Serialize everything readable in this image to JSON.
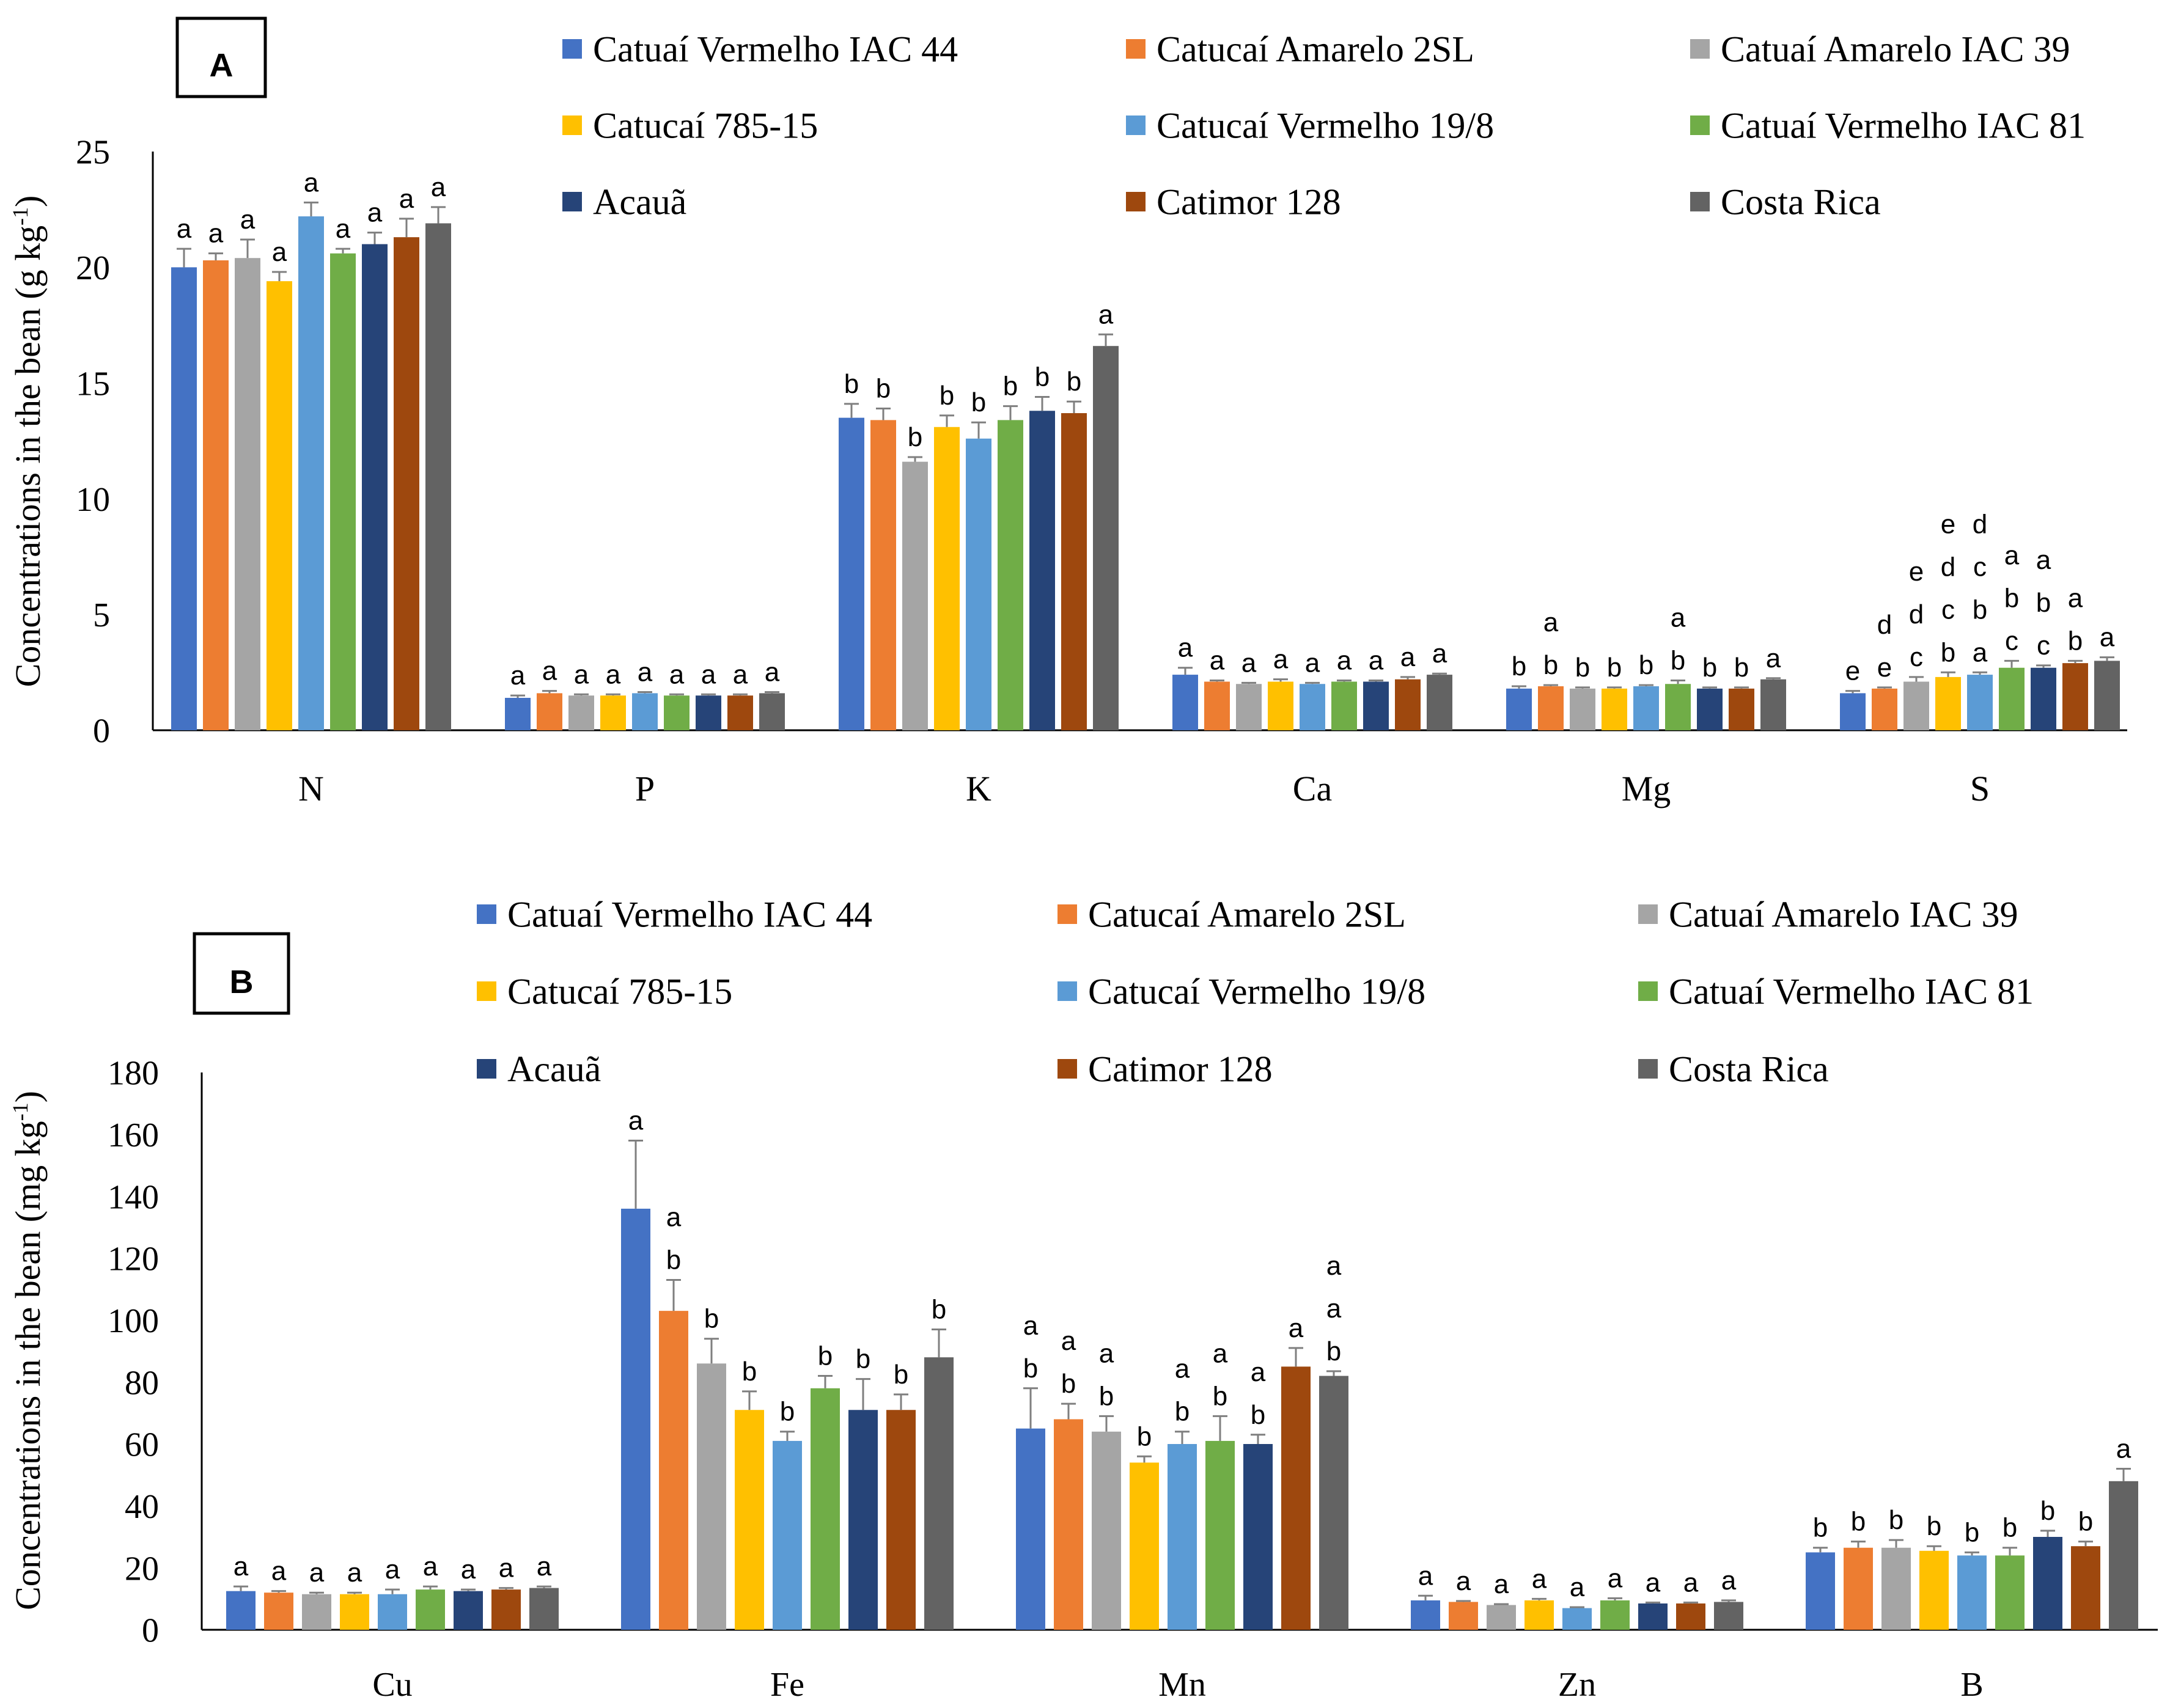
{
  "chart_data": [
    {
      "type": "bar",
      "panel_label": "A",
      "ylabel": "Concentrations in the bean (g kg-1)",
      "ylabel_parts": {
        "main": "Concentrations in the bean (g kg",
        "sup": "-1",
        "close": ")"
      },
      "ylim": [
        0,
        25
      ],
      "yticks": [
        0,
        5,
        10,
        15,
        20,
        25
      ],
      "categories": [
        "N",
        "P",
        "K",
        "Ca",
        "Mg",
        "S"
      ],
      "series": [
        {
          "name": "Catuaí Vermelho IAC 44",
          "color": "#4472C4",
          "values": [
            20.0,
            1.4,
            13.5,
            2.4,
            1.8,
            1.6
          ],
          "errors": [
            0.8,
            0.1,
            0.6,
            0.3,
            0.1,
            0.1
          ],
          "letters": [
            "a",
            "a",
            "b",
            "a",
            "b",
            "e"
          ]
        },
        {
          "name": "Catucaí Amarelo 2SL",
          "color": "#ED7D31",
          "values": [
            20.3,
            1.6,
            13.4,
            2.1,
            1.9,
            1.8
          ],
          "errors": [
            0.3,
            0.1,
            0.5,
            0.05,
            0.05,
            0.05
          ],
          "letters": [
            "a",
            "a",
            "b",
            "a",
            "b\na",
            "e\nd"
          ]
        },
        {
          "name": "Catuaí Amarelo IAC 39",
          "color": "#A5A5A5",
          "values": [
            20.4,
            1.5,
            11.6,
            2.0,
            1.8,
            2.1
          ],
          "errors": [
            0.8,
            0.05,
            0.2,
            0.05,
            0.05,
            0.2
          ],
          "letters": [
            "a",
            "a",
            "b",
            "a",
            "b",
            "c\nd\ne"
          ]
        },
        {
          "name": "Catucaí 785-15",
          "color": "#FFC000",
          "values": [
            19.4,
            1.5,
            13.1,
            2.1,
            1.8,
            2.3
          ],
          "errors": [
            0.4,
            0.05,
            0.5,
            0.1,
            0.05,
            0.2
          ],
          "letters": [
            "a",
            "a",
            "b",
            "a",
            "b",
            "b\nc\nd\ne"
          ]
        },
        {
          "name": "Catucaí Vermelho 19/8",
          "color": "#5B9BD5",
          "values": [
            22.2,
            1.6,
            12.6,
            2.0,
            1.9,
            2.4
          ],
          "errors": [
            0.6,
            0.05,
            0.7,
            0.05,
            0.05,
            0.1
          ],
          "letters": [
            "a",
            "a",
            "b",
            "a",
            "b",
            "a\nb\nc\nd"
          ]
        },
        {
          "name": "Catuaí Vermelho IAC 81",
          "color": "#70AD47",
          "values": [
            20.6,
            1.5,
            13.4,
            2.1,
            2.0,
            2.7
          ],
          "errors": [
            0.2,
            0.05,
            0.6,
            0.05,
            0.15,
            0.3
          ],
          "letters": [
            "a",
            "a",
            "b",
            "a",
            "b\na",
            "c\nb\na"
          ]
        },
        {
          "name": "Acauã",
          "color": "#264478",
          "values": [
            21.0,
            1.5,
            13.8,
            2.1,
            1.8,
            2.7
          ],
          "errors": [
            0.5,
            0.05,
            0.6,
            0.05,
            0.05,
            0.1
          ],
          "letters": [
            "a",
            "a",
            "b",
            "a",
            "b",
            "c\nb\na"
          ]
        },
        {
          "name": "Catimor 128",
          "color": "#9E480E",
          "values": [
            21.3,
            1.5,
            13.7,
            2.2,
            1.8,
            2.9
          ],
          "errors": [
            0.8,
            0.05,
            0.5,
            0.1,
            0.05,
            0.1
          ],
          "letters": [
            "a",
            "a",
            "b",
            "a",
            "b",
            "b\na"
          ]
        },
        {
          "name": "Costa Rica",
          "color": "#636363",
          "values": [
            21.9,
            1.6,
            16.6,
            2.4,
            2.2,
            3.0
          ],
          "errors": [
            0.7,
            0.05,
            0.5,
            0.05,
            0.05,
            0.15
          ],
          "letters": [
            "a",
            "a",
            "a",
            "a",
            "a",
            "a"
          ]
        }
      ]
    },
    {
      "type": "bar",
      "panel_label": "B",
      "ylabel": "Concentrations in the bean (mg kg-1)",
      "ylabel_parts": {
        "main": "Concentrations in the bean (mg kg",
        "sup": "-1",
        "close": ")"
      },
      "ylim": [
        0,
        180
      ],
      "yticks": [
        0,
        20,
        40,
        60,
        80,
        100,
        120,
        140,
        160,
        180
      ],
      "categories": [
        "Cu",
        "Fe",
        "Mn",
        "Zn",
        "B"
      ],
      "series": [
        {
          "name": "Catuaí Vermelho IAC 44",
          "color": "#4472C4",
          "values": [
            12.5,
            136,
            65,
            9.5,
            25
          ],
          "errors": [
            1.5,
            22,
            13,
            1.5,
            1.5
          ],
          "letters": [
            "a",
            "a",
            "b\na",
            "a",
            "b"
          ]
        },
        {
          "name": "Catucaí Amarelo 2SL",
          "color": "#ED7D31",
          "values": [
            12,
            103,
            68,
            9,
            26.5
          ],
          "errors": [
            0.5,
            10,
            5,
            0.3,
            2
          ],
          "letters": [
            "a",
            "b\na",
            "b\na",
            "a",
            "b"
          ]
        },
        {
          "name": "Catuaí Amarelo IAC 39",
          "color": "#A5A5A5",
          "values": [
            11.5,
            86,
            64,
            8,
            26.5
          ],
          "errors": [
            0.5,
            8,
            5,
            0.3,
            2.5
          ],
          "letters": [
            "a",
            "b",
            "b\na",
            "a",
            "b"
          ]
        },
        {
          "name": "Catucaí 785-15",
          "color": "#FFC000",
          "values": [
            11.5,
            71,
            54,
            9.5,
            25.5
          ],
          "errors": [
            0.5,
            6,
            2,
            0.5,
            1.5
          ],
          "letters": [
            "a",
            "b",
            "b",
            "a",
            "b"
          ]
        },
        {
          "name": "Catucaí Vermelho 19/8",
          "color": "#5B9BD5",
          "values": [
            11.5,
            61,
            60,
            7,
            24
          ],
          "errors": [
            1.5,
            3,
            4,
            0.3,
            1
          ],
          "letters": [
            "a",
            "b",
            "b\na",
            "a",
            "b"
          ]
        },
        {
          "name": "Catuaí Vermelho IAC 81",
          "color": "#70AD47",
          "values": [
            13,
            78,
            61,
            9.5,
            24
          ],
          "errors": [
            1,
            4,
            8,
            0.7,
            2.5
          ],
          "letters": [
            "a",
            "b",
            "b\na",
            "a",
            "b"
          ]
        },
        {
          "name": "Acauã",
          "color": "#264478",
          "values": [
            12.5,
            71,
            60,
            8.5,
            30
          ],
          "errors": [
            0.5,
            10,
            3,
            0.3,
            2
          ],
          "letters": [
            "a",
            "b",
            "b\na",
            "a",
            "b"
          ]
        },
        {
          "name": "Catimor 128",
          "color": "#9E480E",
          "values": [
            13,
            71,
            85,
            8.5,
            27
          ],
          "errors": [
            0.5,
            5,
            6,
            0.3,
            1.5
          ],
          "letters": [
            "a",
            "b",
            "a",
            "a",
            "b"
          ]
        },
        {
          "name": "Costa Rica",
          "color": "#636363",
          "values": [
            13.5,
            88,
            82,
            9,
            48
          ],
          "errors": [
            0.5,
            9,
            1.5,
            0.5,
            4
          ],
          "letters": [
            "a",
            "b",
            "b\na\na",
            "a",
            "a"
          ]
        }
      ]
    }
  ]
}
